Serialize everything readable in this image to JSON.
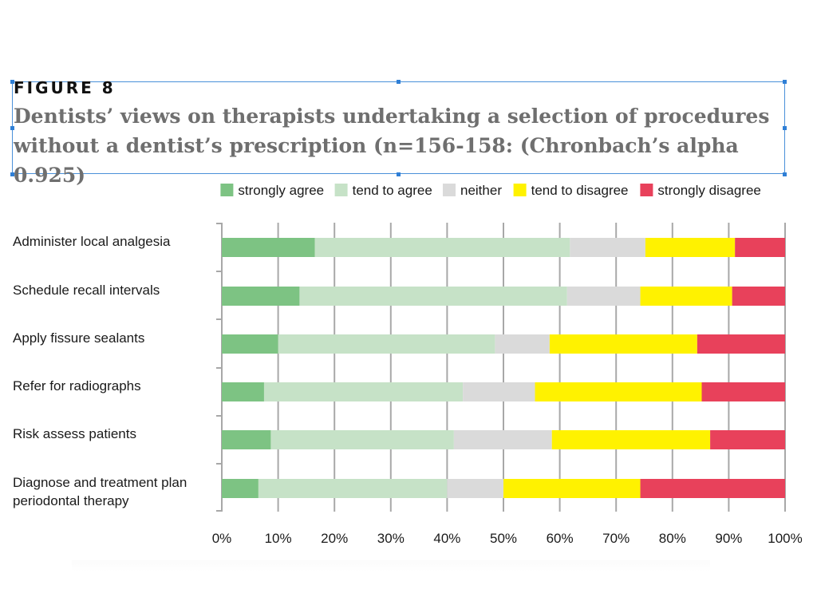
{
  "figure": {
    "label": "FIGURE 8",
    "title": "Dentists’ views on therapists undertaking a selection of procedures without a dentist’s prescription (n=156-158: (Chronbach’s alpha 0.925)"
  },
  "chart_data": {
    "type": "bar",
    "orientation": "horizontal",
    "stacked": true,
    "percent_scale": true,
    "categories": [
      "Administer local analgesia",
      "Schedule recall intervals",
      "Apply fissure sealants",
      "Refer for radiographs",
      "Risk assess patients",
      "Diagnose and treatment plan periodontal therapy"
    ],
    "series": [
      {
        "name": "strongly agree",
        "color": "#7dc383",
        "values": [
          16.5,
          13.8,
          10.0,
          7.5,
          8.7,
          6.5
        ]
      },
      {
        "name": "tend to agree",
        "color": "#c6e2c7",
        "values": [
          45.3,
          47.5,
          38.5,
          35.3,
          32.5,
          33.5
        ]
      },
      {
        "name": "neither",
        "color": "#dadada",
        "values": [
          13.4,
          13.0,
          9.7,
          12.8,
          17.4,
          10.0
        ]
      },
      {
        "name": "tend to disagree",
        "color": "#fff200",
        "values": [
          15.9,
          16.3,
          26.2,
          29.6,
          28.1,
          24.3
        ]
      },
      {
        "name": "strongly disagree",
        "color": "#e8415b",
        "values": [
          8.9,
          9.4,
          15.6,
          14.8,
          13.3,
          25.7
        ]
      }
    ],
    "xlim": [
      0,
      100
    ],
    "x_ticks": [
      "0%",
      "10%",
      "20%",
      "30%",
      "40%",
      "50%",
      "60%",
      "70%",
      "80%",
      "90%",
      "100%"
    ],
    "grid": true,
    "legend_position": "top-right",
    "gridline_color": "#a8a8a8",
    "text_color": "#1a1a1a"
  }
}
